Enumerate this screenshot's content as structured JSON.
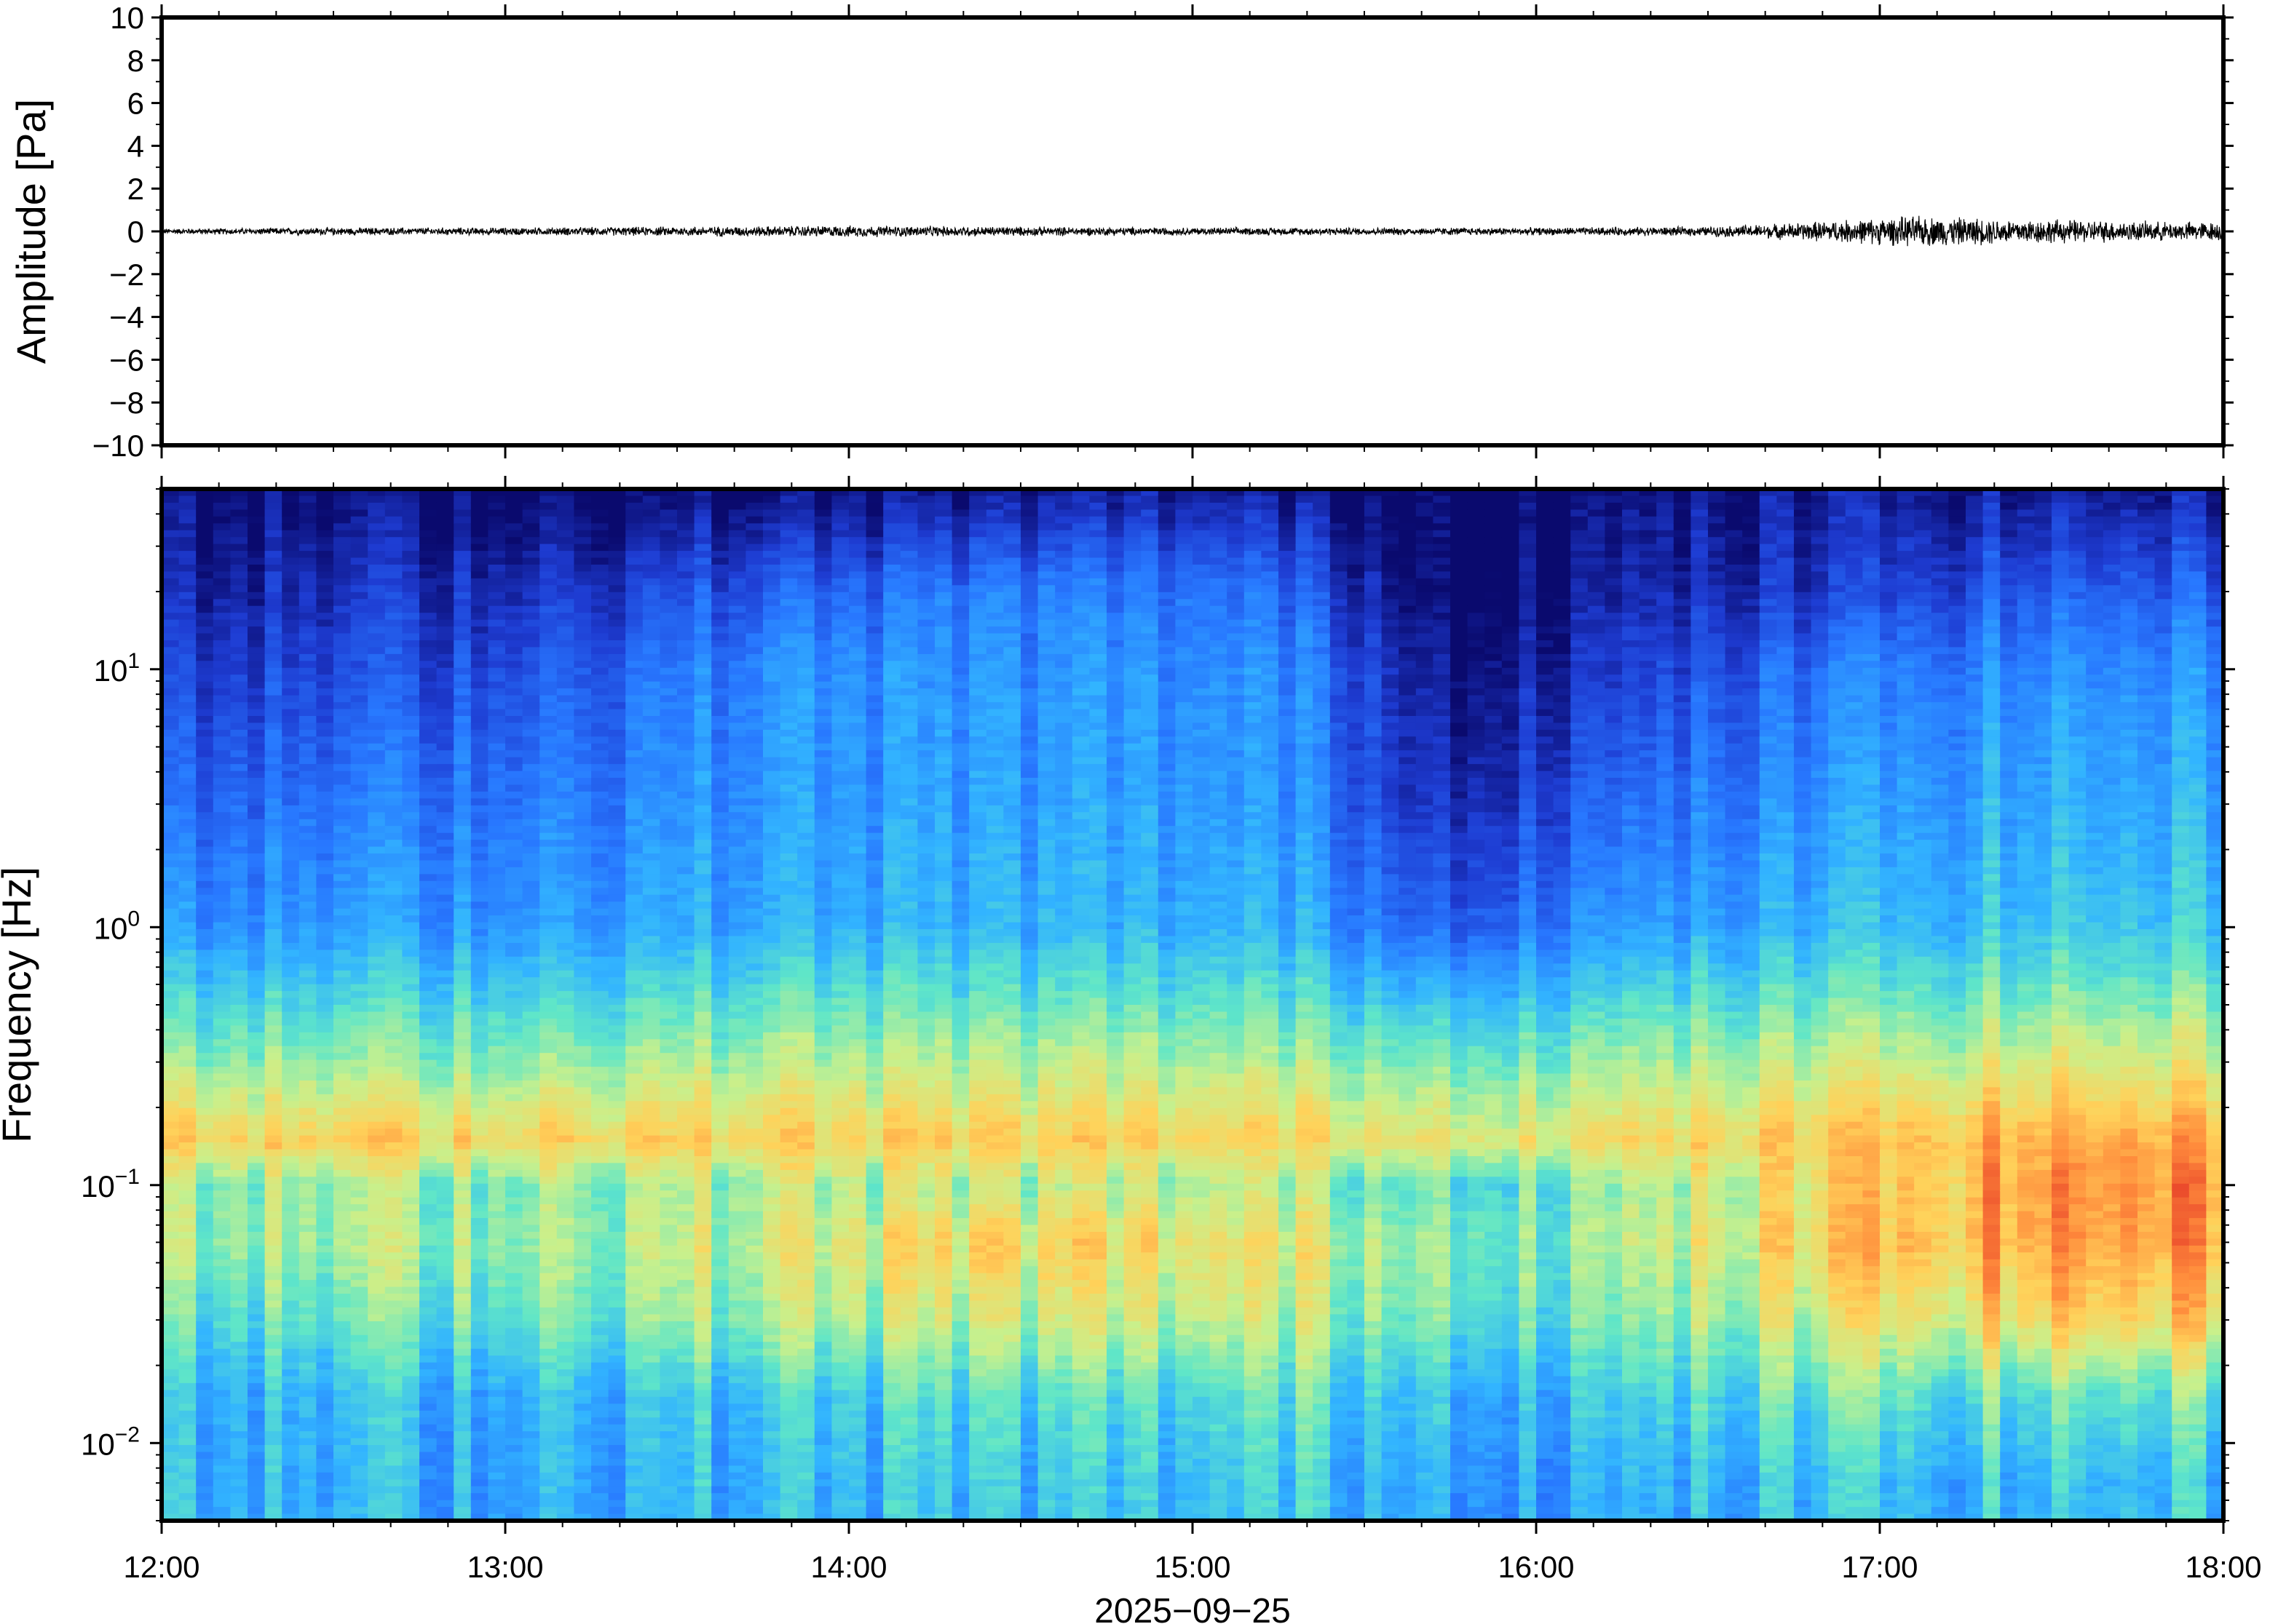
{
  "chart_data": [
    {
      "type": "line",
      "panel": "waveform",
      "ylabel": "Amplitude [Pa]",
      "ylim": [
        -10,
        10
      ],
      "yticks": [
        10,
        8,
        6,
        4,
        2,
        0,
        -2,
        -4,
        -6,
        -8,
        -10
      ],
      "ytick_labels": [
        "10",
        "8",
        "6",
        "4",
        "2",
        "0",
        "−2",
        "−4",
        "−6",
        "−8",
        "−10"
      ],
      "xlim": [
        "2025-09-25 12:00",
        "2025-09-25 18:00"
      ],
      "series": [
        {
          "color": "#000000",
          "envelope": {
            "x_hours": [
              12.0,
              12.5,
              13.0,
              13.5,
              14.0,
              14.5,
              15.0,
              15.5,
              16.0,
              16.5,
              16.7,
              16.9,
              17.1,
              17.3,
              17.6,
              17.8,
              18.0
            ],
            "half_range_pa": [
              0.15,
              0.2,
              0.2,
              0.25,
              0.3,
              0.25,
              0.2,
              0.2,
              0.2,
              0.25,
              0.4,
              0.6,
              0.8,
              0.7,
              0.6,
              0.5,
              0.5
            ]
          }
        }
      ]
    },
    {
      "type": "heatmap",
      "panel": "spectrogram",
      "ylabel": "Frequency [Hz]",
      "yscale": "log",
      "ylim": [
        0.005,
        50
      ],
      "yticks": [
        0.01,
        0.1,
        1,
        10
      ],
      "ytick_labels": [
        {
          "base": "10",
          "exp": "−2"
        },
        {
          "base": "10",
          "exp": "−1"
        },
        {
          "base": "10",
          "exp": "0"
        },
        {
          "base": "10",
          "exp": "1"
        }
      ],
      "xlabel": "2025−09−25",
      "xticks": [
        "12:00",
        "13:00",
        "14:00",
        "15:00",
        "16:00",
        "17:00",
        "18:00"
      ],
      "colormap": [
        "#0a0a6e",
        "#1e3cd2",
        "#2878ff",
        "#32b4ff",
        "#5fe6c8",
        "#c8f08c",
        "#ffd25a",
        "#ff8c3c",
        "#e63c28"
      ],
      "columns_per_hour": 20,
      "rows": [
        {
          "f": 50,
          "levels": [
            0.0,
            0.0,
            0.0,
            0.0,
            0.02,
            0.05,
            0.02,
            0.0,
            0.0,
            0.05,
            0.05
          ]
        },
        {
          "f": 20,
          "levels": [
            0.05,
            0.1,
            0.12,
            0.2,
            0.25,
            0.25,
            0.2,
            0.0,
            0.05,
            0.12,
            0.2
          ]
        },
        {
          "f": 10,
          "levels": [
            0.12,
            0.15,
            0.2,
            0.3,
            0.3,
            0.3,
            0.28,
            0.05,
            0.1,
            0.25,
            0.3
          ]
        },
        {
          "f": 3,
          "levels": [
            0.2,
            0.25,
            0.28,
            0.32,
            0.33,
            0.33,
            0.3,
            0.1,
            0.2,
            0.32,
            0.36
          ]
        },
        {
          "f": 1,
          "levels": [
            0.3,
            0.32,
            0.34,
            0.36,
            0.37,
            0.37,
            0.36,
            0.22,
            0.3,
            0.38,
            0.42
          ]
        },
        {
          "f": 0.5,
          "levels": [
            0.45,
            0.46,
            0.48,
            0.5,
            0.5,
            0.5,
            0.48,
            0.42,
            0.45,
            0.52,
            0.55
          ]
        },
        {
          "f": 0.3,
          "levels": [
            0.55,
            0.56,
            0.58,
            0.6,
            0.6,
            0.6,
            0.58,
            0.55,
            0.56,
            0.62,
            0.66
          ]
        },
        {
          "f": 0.15,
          "levels": [
            0.74,
            0.74,
            0.75,
            0.74,
            0.74,
            0.73,
            0.72,
            0.7,
            0.7,
            0.76,
            0.82
          ]
        },
        {
          "f": 0.1,
          "levels": [
            0.55,
            0.56,
            0.58,
            0.6,
            0.6,
            0.6,
            0.58,
            0.52,
            0.54,
            0.72,
            0.86
          ]
        },
        {
          "f": 0.06,
          "levels": [
            0.56,
            0.58,
            0.6,
            0.64,
            0.72,
            0.7,
            0.66,
            0.58,
            0.56,
            0.76,
            0.84
          ]
        },
        {
          "f": 0.03,
          "levels": [
            0.46,
            0.5,
            0.54,
            0.58,
            0.62,
            0.62,
            0.6,
            0.54,
            0.5,
            0.66,
            0.74
          ]
        },
        {
          "f": 0.015,
          "levels": [
            0.36,
            0.38,
            0.4,
            0.42,
            0.46,
            0.46,
            0.48,
            0.42,
            0.4,
            0.5,
            0.5
          ]
        },
        {
          "f": 0.007,
          "levels": [
            0.36,
            0.36,
            0.38,
            0.38,
            0.4,
            0.4,
            0.42,
            0.38,
            0.34,
            0.4,
            0.4
          ]
        }
      ],
      "levels_x_hours": [
        12.0,
        12.6,
        13.2,
        13.8,
        14.4,
        15.0,
        15.3,
        15.7,
        16.2,
        16.9,
        17.4
      ]
    }
  ]
}
